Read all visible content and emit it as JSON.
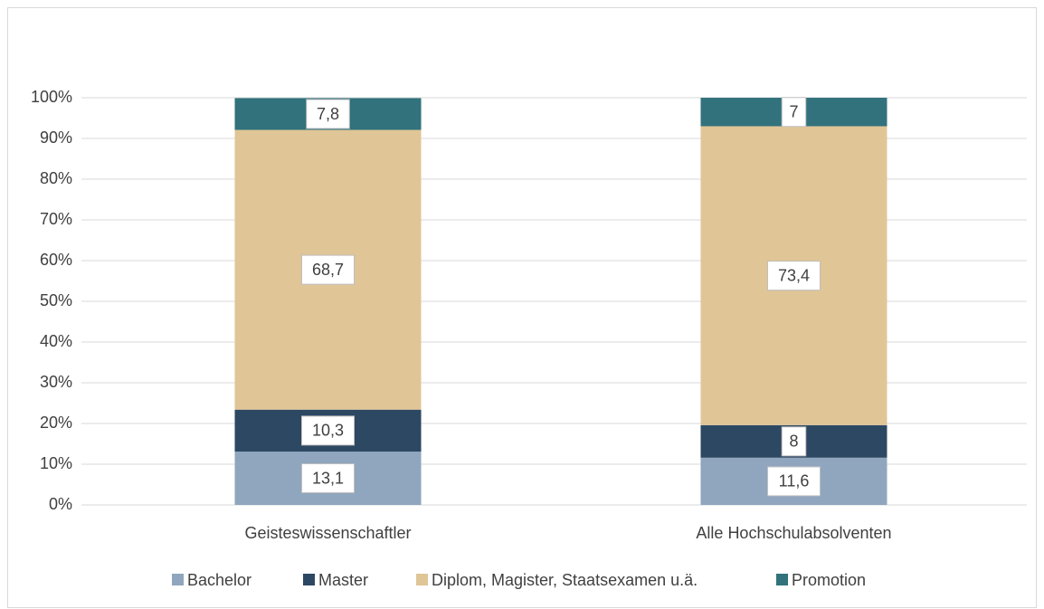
{
  "chart_data": {
    "type": "stacked_bar",
    "categories": [
      "Geisteswissenschaftler",
      "Alle Hochschulabsolventen"
    ],
    "series": [
      {
        "name": "Bachelor",
        "color": "#8fa6be",
        "values": [
          13.1,
          11.6
        ],
        "value_labels": [
          "13,1",
          "11,6"
        ]
      },
      {
        "name": "Master",
        "color": "#2d4863",
        "values": [
          10.3,
          8
        ],
        "value_labels": [
          "10,3",
          "8"
        ]
      },
      {
        "name": "Diplom, Magister, Staatsexamen u.ä.",
        "color": "#e0c597",
        "values": [
          68.7,
          73.4
        ],
        "value_labels": [
          "68,7",
          "73,4"
        ]
      },
      {
        "name": "Promotion",
        "color": "#31727c",
        "values": [
          7.8,
          7
        ],
        "value_labels": [
          "7,8",
          "7"
        ]
      }
    ],
    "ylim": [
      0,
      100
    ],
    "yticks": [
      {
        "value": 0,
        "label": "0%"
      },
      {
        "value": 10,
        "label": "10%"
      },
      {
        "value": 20,
        "label": "20%"
      },
      {
        "value": 30,
        "label": "30%"
      },
      {
        "value": 40,
        "label": "40%"
      },
      {
        "value": 50,
        "label": "50%"
      },
      {
        "value": 60,
        "label": "60%"
      },
      {
        "value": 70,
        "label": "70%"
      },
      {
        "value": 80,
        "label": "80%"
      },
      {
        "value": 90,
        "label": "90%"
      },
      {
        "value": 100,
        "label": "100%"
      }
    ],
    "grid": true,
    "legend": "bottom"
  }
}
